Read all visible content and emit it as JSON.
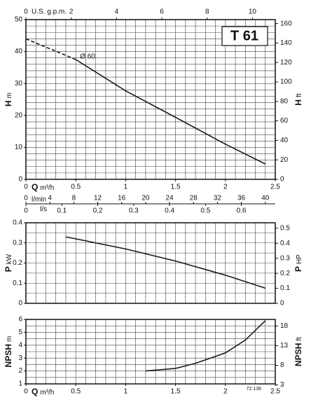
{
  "chart_data": [
    {
      "type": "line",
      "title": "T 61",
      "ylabel": "H",
      "yunit": "m",
      "y2label": "H",
      "y2unit": "ft",
      "xlabel": "Q",
      "xunit": "m³/h",
      "xlim": [
        0,
        2.5
      ],
      "xticks": [
        0,
        0.5,
        1,
        1.5,
        2,
        2.5
      ],
      "ylim": [
        0,
        50
      ],
      "yticks": [
        0,
        10,
        20,
        30,
        40,
        50
      ],
      "y2lim": [
        0,
        164.04
      ],
      "y2ticks": [
        0,
        20,
        40,
        60,
        80,
        100,
        120,
        140,
        160
      ],
      "top_axis": {
        "label": "U.S. g.p.m.",
        "lim": [
          0,
          11.007
        ],
        "ticks": [
          0,
          2,
          4,
          6,
          8,
          10
        ]
      },
      "extra_axes": [
        {
          "label": "l/min",
          "lim": [
            0,
            41.667
          ],
          "ticks": [
            0,
            4,
            8,
            12,
            16,
            20,
            24,
            28,
            32,
            36,
            40
          ]
        },
        {
          "label": "l/s",
          "lim": [
            0,
            0.6944
          ],
          "ticks": [
            0,
            0.1,
            0.2,
            0.3,
            0.4,
            0.5,
            0.6
          ]
        }
      ],
      "grid": true,
      "color": "#1a1a1a",
      "annotation": "Ø 60",
      "series": [
        {
          "x": [
            0,
            0.5
          ],
          "values": [
            44,
            37.5
          ],
          "line_style": "dashed"
        },
        {
          "x": [
            0.5,
            1,
            1.5,
            2,
            2.4
          ],
          "values": [
            37.5,
            27.7,
            19.4,
            11,
            4.8
          ],
          "line_style": "solid"
        }
      ]
    },
    {
      "type": "line",
      "ylabel": "P",
      "yunit": "kW",
      "y2label": "P",
      "y2unit": "HP",
      "xlim": [
        0,
        2.5
      ],
      "ylim": [
        0,
        0.4
      ],
      "yticks": [
        0,
        0.1,
        0.2,
        0.3,
        0.4
      ],
      "y2lim": [
        0,
        0.5364
      ],
      "y2ticks": [
        0,
        0.1,
        0.2,
        0.3,
        0.4,
        0.5
      ],
      "grid": true,
      "color": "#1a1a1a",
      "series": [
        {
          "x": [
            0.4,
            1,
            1.5,
            2,
            2.4
          ],
          "values": [
            0.33,
            0.27,
            0.21,
            0.14,
            0.075
          ],
          "line_style": "solid"
        }
      ]
    },
    {
      "type": "line",
      "ylabel": "NPSH",
      "yunit": "m",
      "y2label": "NPSH",
      "y2unit": "ft",
      "xlabel": "Q",
      "xunit": "m³/h",
      "xlim": [
        0,
        2.5
      ],
      "xticks": [
        0,
        0.5,
        1,
        1.5,
        2,
        2.5
      ],
      "ylim": [
        1,
        6
      ],
      "yticks": [
        1,
        2,
        3,
        4,
        5,
        6
      ],
      "y2lim": [
        3.281,
        19.685
      ],
      "y2ticks": [
        3,
        8,
        13,
        18
      ],
      "grid": true,
      "color": "#1a1a1a",
      "code": "72.136",
      "series": [
        {
          "x": [
            1.2,
            1.5,
            1.7,
            2,
            2.2,
            2.4
          ],
          "values": [
            2,
            2.2,
            2.6,
            3.4,
            4.4,
            5.9
          ],
          "line_style": "solid"
        }
      ]
    }
  ]
}
